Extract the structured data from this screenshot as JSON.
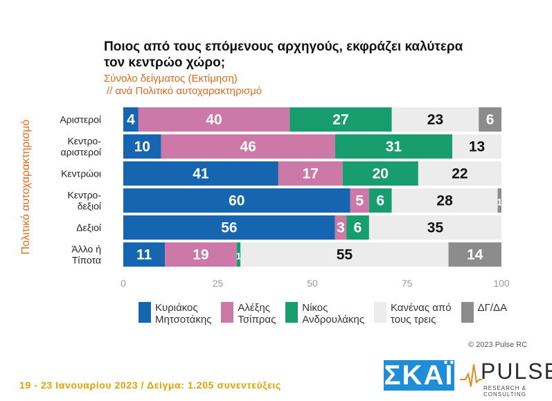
{
  "title": "Ποιος από τους επόμενους αρχηγούς, εκφράζει καλύτερα τον κεντρώο χώρο;",
  "subtitle_line1": "Σύνολο δείγματος (Εκτίμηση)",
  "subtitle_line2": "// ανά Πολιτικό αυτοχαρακτηρισμό",
  "copyright": "© 2023 Pulse RC",
  "footer": "19 - 23 Ιανουαρίου 2023 / Δείγμα: 1.205 συνεντεύξεις",
  "logos": {
    "skai": "ΣΚΑΪ",
    "pulse": "PULSE",
    "pulse_sub": "RESEARCH & CONSULTING"
  },
  "chart_data": {
    "type": "bar",
    "orientation": "horizontal",
    "stacked": true,
    "ylabel": "Πολιτικό αυτοχαρακτηρισμό",
    "categories": [
      [
        "Αριστεροί"
      ],
      [
        "Κεντρο-",
        "αριστεροί"
      ],
      [
        "Κεντρώοι"
      ],
      [
        "Κεντρο-",
        "δεξιοί"
      ],
      [
        "Δεξιοί"
      ],
      [
        "Άλλο ή",
        "Τίποτα"
      ]
    ],
    "xlim": [
      0,
      100
    ],
    "xticks": [
      0,
      25,
      50,
      75,
      100
    ],
    "series": [
      {
        "name": "Κυριάκος\nΜητσοτάκης",
        "color": "#1565b0",
        "values": [
          4,
          10,
          41,
          60,
          56,
          11
        ]
      },
      {
        "name": "Αλέξης\nΤσίπρας",
        "color": "#cc79a7",
        "values": [
          40,
          46,
          17,
          5,
          3,
          19
        ]
      },
      {
        "name": "Νίκος\nΑνδρουλάκης",
        "color": "#189e6e",
        "values": [
          27,
          31,
          20,
          6,
          6,
          1
        ]
      },
      {
        "name": "Κανένας από\nτους τρεις",
        "color": "#ececec",
        "values": [
          23,
          13,
          22,
          28,
          35,
          55
        ]
      },
      {
        "name": "ΔΓ/ΔΑ",
        "color": "#8c8c8c",
        "values": [
          6,
          0,
          0,
          1,
          0,
          14
        ]
      }
    ],
    "legend_position": "bottom"
  }
}
